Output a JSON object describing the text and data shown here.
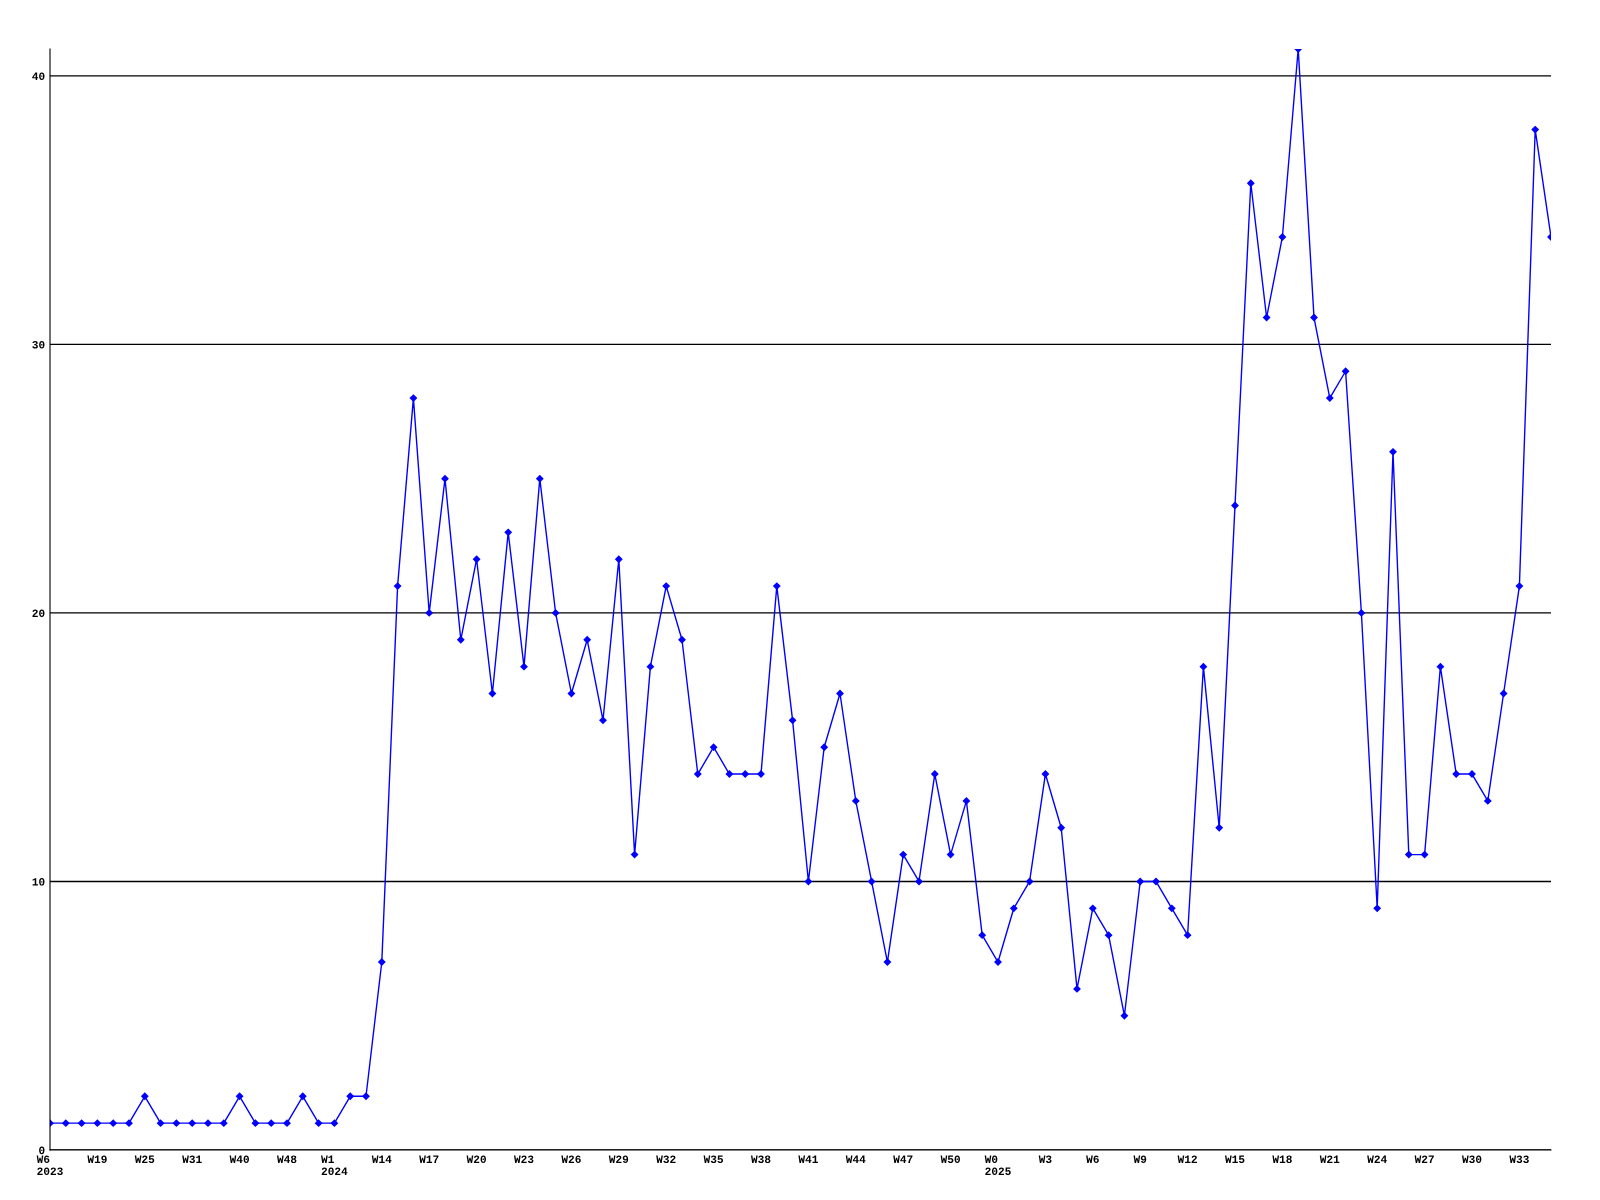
{
  "chart_data": {
    "type": "line",
    "categories": [
      "W6\n2023",
      null,
      null,
      "W19",
      null,
      null,
      "W25",
      null,
      null,
      "W31",
      null,
      null,
      "W40",
      null,
      null,
      "W48",
      null,
      null,
      "W1\n2024",
      null,
      null,
      "W14",
      null,
      null,
      "W17",
      null,
      null,
      "W20",
      null,
      null,
      "W23",
      null,
      null,
      "W26",
      null,
      null,
      "W29",
      null,
      null,
      "W32",
      null,
      null,
      "W35",
      null,
      null,
      "W38",
      null,
      null,
      "W41",
      null,
      null,
      "W44",
      null,
      null,
      "W47",
      null,
      null,
      "W50",
      null,
      null,
      "W0\n2025",
      null,
      null,
      "W3",
      null,
      null,
      "W6",
      null,
      null,
      "W9",
      null,
      null,
      "W12",
      null,
      null,
      "W15",
      null,
      null,
      "W18",
      null,
      null,
      "W21",
      null,
      null,
      "W24",
      null,
      null,
      "W27",
      null,
      null,
      "W30",
      null,
      null,
      "W33",
      null,
      null
    ],
    "series": [
      {
        "color": "#0000ff",
        "values": [
          1,
          1,
          1,
          1,
          1,
          1,
          2,
          1,
          1,
          1,
          1,
          1,
          2,
          1,
          1,
          1,
          2,
          1,
          1,
          2,
          2,
          7,
          21,
          28,
          20,
          25,
          19,
          22,
          17,
          23,
          18,
          25,
          20,
          17,
          19,
          16,
          22,
          11,
          18,
          21,
          19,
          14,
          15,
          14,
          14,
          14,
          21,
          16,
          10,
          15,
          17,
          13,
          10,
          7,
          11,
          10,
          14,
          11,
          13,
          8,
          7,
          9,
          10,
          14,
          12,
          6,
          9,
          8,
          5,
          10,
          10,
          9,
          8,
          18,
          12,
          24,
          36,
          31,
          34,
          41,
          31,
          28,
          29,
          20,
          9,
          26,
          11,
          11,
          18,
          14,
          14,
          13,
          17,
          21,
          38,
          34
        ]
      }
    ],
    "ylim": [
      0,
      41
    ],
    "yticks": [
      0,
      10,
      20,
      30,
      40
    ],
    "grid": "y",
    "marker": "diamond",
    "line_style": "solid",
    "legend": false
  }
}
